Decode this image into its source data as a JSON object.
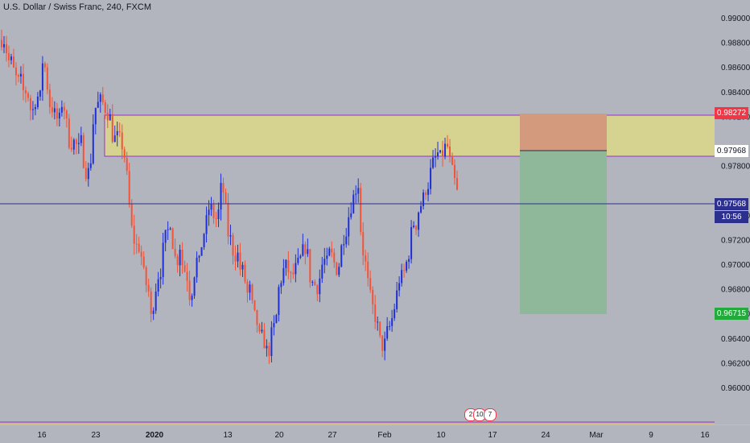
{
  "title": "U.S. Dollar / Swiss Franc, 240, FXCM",
  "colors": {
    "background": "#b2b5be",
    "up": "#1e2fd6",
    "down": "#f2543a",
    "zone_fill": "#d6d28f",
    "zone_border": "#9b30c9",
    "stop_fill": "#d39a7e",
    "target_fill": "#8fb89a",
    "price_line": "#2d2f8e"
  },
  "chart_data": {
    "type": "candlestick",
    "y_ticks": [
      "0.99000",
      "0.98800",
      "0.98600",
      "0.98400",
      "0.98200",
      "0.97800",
      "0.97400",
      "0.97200",
      "0.97000",
      "0.96800",
      "0.96600",
      "0.96400",
      "0.96200",
      "0.96000"
    ],
    "x_ticks": [
      "16",
      "23",
      "2020",
      "13",
      "20",
      "27",
      "Feb",
      "10",
      "17",
      "24",
      "Mar",
      "9",
      "16"
    ],
    "zone": {
      "top": 0.98272,
      "bottom": 0.97968
    },
    "position": {
      "stop": 0.98272,
      "entry": 0.97968,
      "target": 0.96715
    },
    "current_price": 0.97568,
    "price_labels": [
      {
        "text": "0.98272",
        "color": "#f23645"
      },
      {
        "text": "0.97968",
        "color": "#131722"
      },
      {
        "text": "0.97568",
        "color": "#2d2f8e"
      },
      {
        "text": "10:56",
        "color": "#2d2f8e"
      },
      {
        "text": "0.96715",
        "color": "#22ab3b"
      }
    ],
    "events": [
      "2",
      "10",
      "7"
    ],
    "path": [
      [
        0.9882,
        0.9882
      ],
      [
        0.9865,
        0.9865
      ],
      [
        0.9855,
        0.9848
      ],
      [
        0.985,
        0.9838
      ],
      [
        0.9842,
        0.9826
      ],
      [
        0.9825,
        0.9838
      ],
      [
        0.9832,
        0.987
      ],
      [
        0.9853,
        0.983
      ],
      [
        0.9826,
        0.982
      ],
      [
        0.9815,
        0.9832
      ],
      [
        0.9824,
        0.98
      ],
      [
        0.9798,
        0.98
      ],
      [
        0.9792,
        0.98
      ],
      [
        0.9778,
        0.9772
      ],
      [
        0.9785,
        0.9825
      ],
      [
        0.9829,
        0.9833
      ],
      [
        0.983,
        0.9823
      ],
      [
        0.982,
        0.98
      ],
      [
        0.9804,
        0.9802
      ],
      [
        0.9795,
        0.9782
      ],
      [
        0.975,
        0.9725
      ],
      [
        0.9715,
        0.9715
      ],
      [
        0.9705,
        0.9685
      ],
      [
        0.9682,
        0.9654
      ],
      [
        0.9675,
        0.969
      ],
      [
        0.9695,
        0.972
      ],
      [
        0.9725,
        0.9735
      ],
      [
        0.971,
        0.97
      ],
      [
        0.9715,
        0.9695
      ],
      [
        0.9695,
        0.9675
      ],
      [
        0.968,
        0.9705
      ],
      [
        0.97,
        0.972
      ],
      [
        0.973,
        0.9745
      ],
      [
        0.9745,
        0.9735
      ],
      [
        0.974,
        0.9765
      ],
      [
        0.9755,
        0.9725
      ],
      [
        0.972,
        0.9705
      ],
      [
        0.971,
        0.9695
      ],
      [
        0.9695,
        0.9675
      ],
      [
        0.968,
        0.966
      ],
      [
        0.9655,
        0.964
      ],
      [
        0.9642,
        0.963
      ],
      [
        0.963,
        0.9648
      ],
      [
        0.965,
        0.968
      ],
      [
        0.969,
        0.97
      ],
      [
        0.9695,
        0.9688
      ],
      [
        0.9695,
        0.97
      ],
      [
        0.9705,
        0.9715
      ],
      [
        0.971,
        0.9685
      ],
      [
        0.9685,
        0.968
      ],
      [
        0.969,
        0.9705
      ],
      [
        0.97,
        0.971
      ],
      [
        0.9705,
        0.9695
      ],
      [
        0.97,
        0.972
      ],
      [
        0.9725,
        0.974
      ],
      [
        0.975,
        0.976
      ],
      [
        0.9765,
        0.9715
      ],
      [
        0.9705,
        0.9685
      ],
      [
        0.967,
        0.966
      ],
      [
        0.965,
        0.9635
      ],
      [
        0.9632,
        0.9645
      ],
      [
        0.965,
        0.966
      ],
      [
        0.9675,
        0.969
      ],
      [
        0.969,
        0.97
      ],
      [
        0.971,
        0.9735
      ],
      [
        0.973,
        0.9745
      ],
      [
        0.975,
        0.976
      ],
      [
        0.9765,
        0.978
      ],
      [
        0.9785,
        0.979
      ],
      [
        0.9785,
        0.9795
      ],
      [
        0.9795,
        0.978
      ],
      [
        0.977,
        0.9758
      ]
    ]
  }
}
